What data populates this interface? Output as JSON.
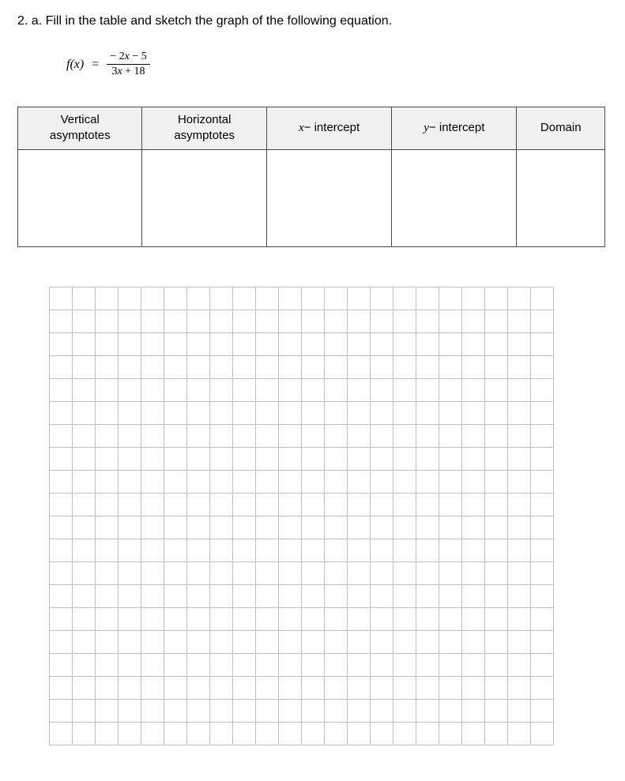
{
  "question": {
    "prompt": "2. a. Fill in the table and sketch the graph of the following equation."
  },
  "equation": {
    "lhs": "f(x)",
    "eq": "=",
    "numerator": "− 2x   −   5",
    "denominator": "3x   +   18"
  },
  "table": {
    "headers": {
      "col1_line1": "Vertical",
      "col1_line2": "asymptotes",
      "col2_line1": "Horizontal",
      "col2_line2": "asymptotes",
      "col3_var": "x",
      "col3_rest": "−  intercept",
      "col4_var": "y",
      "col4_rest": "− intercept",
      "col5": "Domain"
    },
    "header_bg": "#f0f0f0",
    "border_color": "#4a4a4a",
    "cells": [
      "",
      "",
      "",
      "",
      ""
    ]
  },
  "grid": {
    "cols": 22,
    "rows": 20,
    "cell_size": 29,
    "line_color": "#bfbfbf",
    "line_width": 1,
    "background": "#ffffff"
  }
}
